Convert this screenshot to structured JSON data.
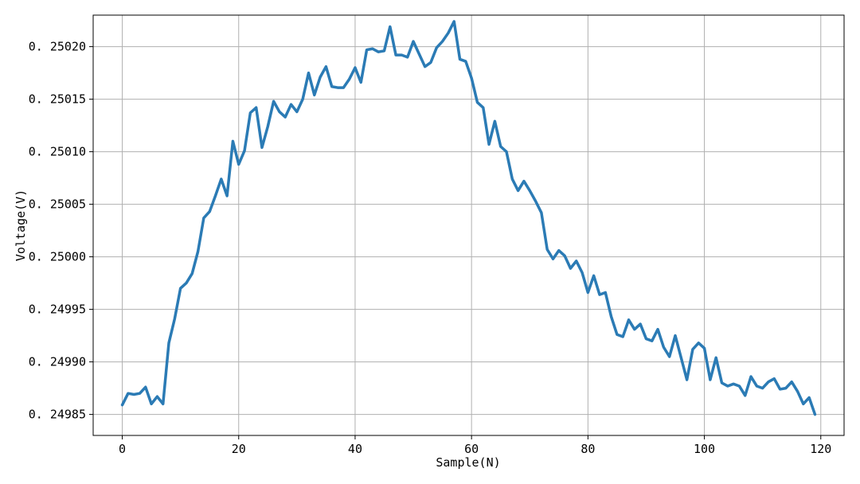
{
  "chart_data": {
    "type": "line",
    "xlabel": "Sample(N)",
    "ylabel": "Voltage(V)",
    "xlim": [
      -5,
      124
    ],
    "ylim": [
      0.24983,
      0.25023
    ],
    "xticks": [
      0,
      20,
      40,
      60,
      80,
      100,
      120
    ],
    "xtick_labels": [
      "0",
      "20",
      "40",
      "60",
      "80",
      "100",
      "120"
    ],
    "yticks": [
      0.24985,
      0.2499,
      0.24995,
      0.25,
      0.25005,
      0.2501,
      0.25015,
      0.2502
    ],
    "ytick_labels": [
      "0. 24985",
      "0. 24990",
      "0. 24995",
      "0. 25000",
      "0. 25005",
      "0. 25010",
      "0. 25015",
      "0. 25020"
    ],
    "grid": true,
    "color": "#2b7bb5",
    "series": [
      {
        "x": [
          0,
          1,
          2,
          3,
          4,
          5,
          6,
          7,
          8,
          9,
          10,
          11,
          12,
          13,
          14,
          15,
          16,
          17,
          18,
          19,
          20,
          21,
          22,
          23,
          24,
          25,
          26,
          27,
          28,
          29,
          30,
          31,
          32,
          33,
          34,
          35,
          36,
          37,
          38,
          39,
          40,
          41,
          42,
          43,
          44,
          45,
          46,
          47,
          48,
          49,
          50,
          51,
          52,
          53,
          54,
          55,
          56,
          57,
          58,
          59,
          60,
          61,
          62,
          63,
          64,
          65,
          66,
          67,
          68,
          69,
          70,
          71,
          72,
          73,
          74,
          75,
          76,
          77,
          78,
          79,
          80,
          81,
          82,
          83,
          84,
          85,
          86,
          87,
          88,
          89,
          90,
          91,
          92,
          93,
          94,
          95,
          96,
          97,
          98,
          99,
          100,
          101,
          102,
          103,
          104,
          105,
          106,
          107,
          108,
          109,
          110,
          111,
          112,
          113,
          114,
          115,
          116,
          117,
          118,
          119
        ],
        "values": [
          0.249859,
          0.24987,
          0.249869,
          0.24987,
          0.249876,
          0.24986,
          0.249867,
          0.24986,
          0.249918,
          0.249941,
          0.24997,
          0.249975,
          0.249984,
          0.250005,
          0.250037,
          0.250043,
          0.250058,
          0.250074,
          0.250058,
          0.25011,
          0.250088,
          0.250101,
          0.250137,
          0.250142,
          0.250104,
          0.250124,
          0.250148,
          0.250138,
          0.250133,
          0.250145,
          0.250138,
          0.25015,
          0.250175,
          0.250154,
          0.250171,
          0.250181,
          0.250162,
          0.250161,
          0.250161,
          0.250169,
          0.25018,
          0.250166,
          0.250197,
          0.250198,
          0.250195,
          0.250196,
          0.250219,
          0.250192,
          0.250192,
          0.25019,
          0.250205,
          0.250193,
          0.250181,
          0.250185,
          0.250199,
          0.250205,
          0.250213,
          0.250224,
          0.250188,
          0.250186,
          0.25017,
          0.250147,
          0.250142,
          0.250107,
          0.250129,
          0.250105,
          0.2501,
          0.250074,
          0.250063,
          0.250072,
          0.250063,
          0.250053,
          0.250042,
          0.250007,
          0.249998,
          0.250006,
          0.250001,
          0.249989,
          0.249996,
          0.249985,
          0.249966,
          0.249982,
          0.249964,
          0.249966,
          0.249943,
          0.249926,
          0.249924,
          0.24994,
          0.249931,
          0.249936,
          0.249922,
          0.24992,
          0.249931,
          0.249914,
          0.249905,
          0.249925,
          0.249904,
          0.249883,
          0.249912,
          0.249918,
          0.249913,
          0.249883,
          0.249904,
          0.24988,
          0.249877,
          0.249879,
          0.249877,
          0.249868,
          0.249886,
          0.249877,
          0.249875,
          0.249881,
          0.249884,
          0.249874,
          0.249875,
          0.249881,
          0.249872,
          0.24986,
          0.249866,
          0.24985
        ]
      }
    ]
  }
}
